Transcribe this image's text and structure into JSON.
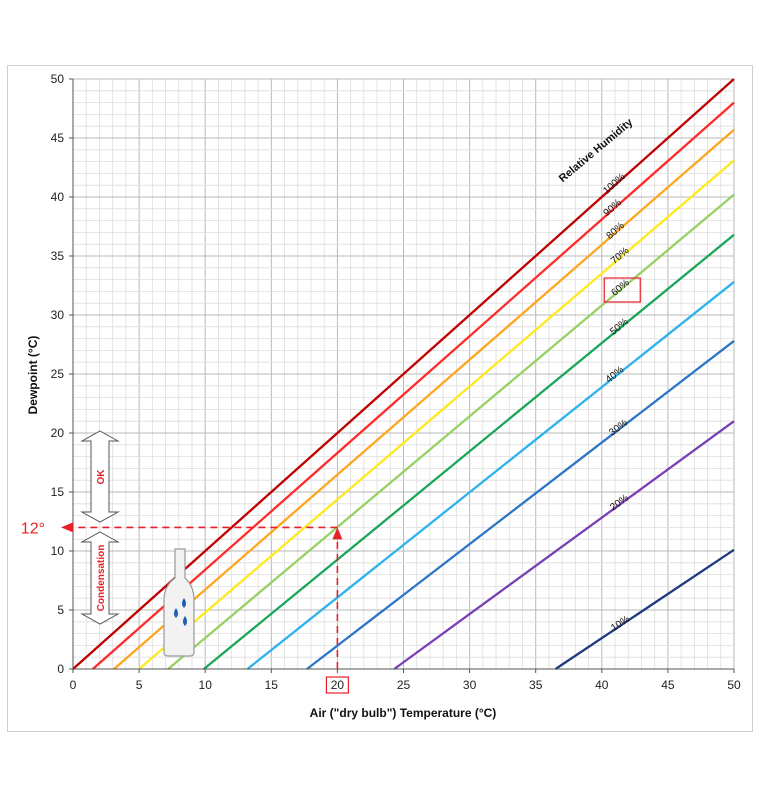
{
  "chart_data": {
    "type": "line",
    "xlabel": "Air (\"dry bulb\") Temperature (°C)",
    "ylabel": "Dewpoint (°C)",
    "xlim": [
      0,
      50
    ],
    "ylim": [
      0,
      50
    ],
    "x_ticks": [
      "0",
      "5",
      "10",
      "15",
      "20",
      "25",
      "30",
      "35",
      "40",
      "45",
      "50"
    ],
    "y_ticks": [
      "0",
      "5",
      "10",
      "15",
      "20",
      "25",
      "30",
      "35",
      "40",
      "45",
      "50"
    ],
    "grid": true,
    "minor_grid_step": 1,
    "legend_title": "Relative Humidity",
    "series": [
      {
        "name": "100%",
        "color": "#c00000",
        "points": [
          [
            0,
            0
          ],
          [
            50,
            50
          ]
        ]
      },
      {
        "name": "90%",
        "color": "#ff2a2a",
        "points": [
          [
            1.5,
            0
          ],
          [
            50,
            48
          ]
        ]
      },
      {
        "name": "80%",
        "color": "#ffa51e",
        "points": [
          [
            3.1,
            0
          ],
          [
            50,
            45.7
          ]
        ]
      },
      {
        "name": "70%",
        "color": "#ffe81e",
        "points": [
          [
            5.0,
            0
          ],
          [
            50,
            43.1
          ]
        ]
      },
      {
        "name": "60%",
        "color": "#96d163",
        "points": [
          [
            7.2,
            0
          ],
          [
            50,
            40.2
          ]
        ]
      },
      {
        "name": "50%",
        "color": "#19a65a",
        "points": [
          [
            9.9,
            0
          ],
          [
            50,
            36.8
          ]
        ]
      },
      {
        "name": "40%",
        "color": "#2cb2ec",
        "points": [
          [
            13.2,
            0
          ],
          [
            50,
            32.8
          ]
        ]
      },
      {
        "name": "30%",
        "color": "#2e75c8",
        "points": [
          [
            17.7,
            0
          ],
          [
            50,
            27.8
          ]
        ]
      },
      {
        "name": "20%",
        "color": "#7b3fb4",
        "points": [
          [
            24.3,
            0
          ],
          [
            50,
            21.0
          ]
        ]
      },
      {
        "name": "10%",
        "color": "#1f3a7d",
        "points": [
          [
            36.5,
            0
          ],
          [
            50,
            10.1
          ]
        ]
      }
    ],
    "highlight_series": "60%",
    "annotations": {
      "example_x": 20,
      "example_y": 12,
      "dewpoint_callout": "12°",
      "ok_label": "OK",
      "condensation_label": "Condensation"
    }
  }
}
